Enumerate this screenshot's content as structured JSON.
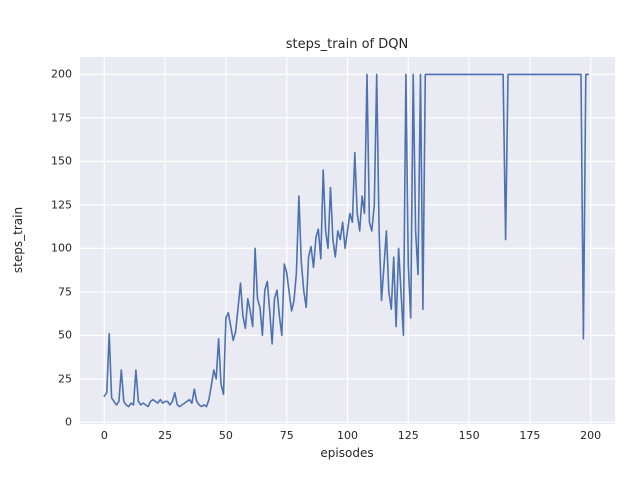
{
  "chart_data": {
    "type": "line",
    "title": "steps_train of DQN",
    "xlabel": "episodes",
    "ylabel": "steps_train",
    "x_ticks": [
      0,
      25,
      50,
      75,
      100,
      125,
      150,
      175,
      200
    ],
    "y_ticks": [
      0,
      25,
      50,
      75,
      100,
      125,
      150,
      175,
      200
    ],
    "xlim": [
      -10,
      210
    ],
    "ylim": [
      -1,
      210
    ],
    "grid": true,
    "legend": "none",
    "line_color": "#4c72b0",
    "axes_background": "#eaeaf2",
    "grid_color": "#ffffff",
    "text_color": "#262626",
    "x_is_index": true,
    "series": [
      {
        "name": "steps_train",
        "values": [
          15,
          17,
          51,
          14,
          12,
          10,
          12,
          30,
          12,
          10,
          9,
          11,
          10,
          30,
          12,
          10,
          11,
          10,
          9,
          12,
          13,
          12,
          11,
          13,
          11,
          12,
          12,
          10,
          12,
          17,
          10,
          9,
          10,
          11,
          12,
          13,
          11,
          19,
          12,
          10,
          9,
          10,
          9,
          13,
          21,
          30,
          25,
          48,
          22,
          16,
          60,
          63,
          55,
          47,
          52,
          66,
          80,
          61,
          54,
          71,
          64,
          55,
          100,
          71,
          66,
          50,
          76,
          81,
          64,
          45,
          71,
          76,
          61,
          50,
          91,
          86,
          75,
          64,
          70,
          86,
          130,
          92,
          76,
          66,
          95,
          101,
          89,
          106,
          111,
          94,
          145,
          110,
          100,
          135,
          105,
          95,
          110,
          105,
          115,
          100,
          110,
          120,
          115,
          155,
          120,
          110,
          130,
          120,
          200,
          115,
          110,
          125,
          200,
          110,
          70,
          90,
          110,
          75,
          65,
          95,
          55,
          100,
          75,
          50,
          200,
          90,
          60,
          200,
          110,
          85,
          200,
          65,
          200,
          200,
          200,
          200,
          200,
          200,
          200,
          200,
          200,
          200,
          200,
          200,
          200,
          200,
          200,
          200,
          200,
          200,
          200,
          200,
          200,
          200,
          200,
          200,
          200,
          200,
          200,
          200,
          200,
          200,
          200,
          200,
          200,
          105,
          200,
          200,
          200,
          200,
          200,
          200,
          200,
          200,
          200,
          200,
          200,
          200,
          200,
          200,
          200,
          200,
          200,
          200,
          200,
          200,
          200,
          200,
          200,
          200,
          200,
          200,
          200,
          200,
          200,
          200,
          200,
          48,
          200,
          200
        ]
      }
    ]
  }
}
